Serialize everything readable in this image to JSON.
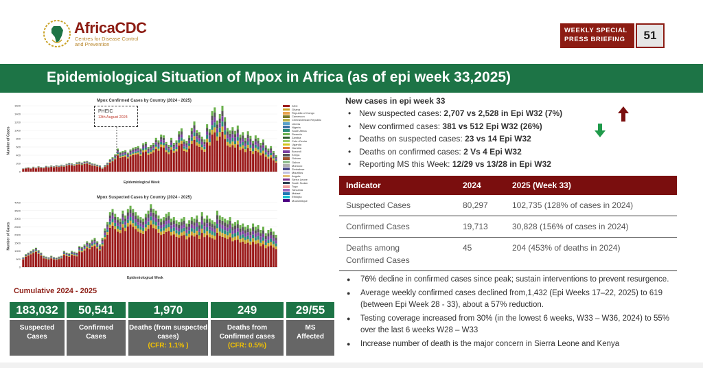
{
  "header": {
    "logo_text": "AfricaCDC",
    "logo_sub_1": "Centres for Disease Control",
    "logo_sub_2": "and Prevention",
    "briefing_line1": "WEEKLY SPECIAL",
    "briefing_line2": "PRESS BRIEFING",
    "briefing_number": "51"
  },
  "title": "Epidemiological Situation of Mpox in Africa (as of epi week 33,2025)",
  "charts": {
    "confirmed": {
      "title": "Mpox Confirmed Cases by Country (2024 - 2025)",
      "xlabel": "Epidemiological Week",
      "ylabel": "Number of Cases",
      "y_ticks": [
        "1600",
        "1400",
        "1200",
        "1000",
        "800",
        "600",
        "400",
        "200",
        "0"
      ],
      "annotation_title": "PHEIC",
      "annotation_date": "13th August 2024"
    },
    "suspected": {
      "title": "Mpox Suspected Cases by Country (2024 - 2025)",
      "xlabel": "Epidemiological Week",
      "ylabel": "Number of Cases",
      "y_ticks": [
        "4000",
        "3500",
        "3000",
        "2500",
        "2000",
        "1500",
        "1000",
        "500",
        "0"
      ]
    },
    "legend": [
      {
        "name": "DRC",
        "color": "#9b1b1b"
      },
      {
        "name": "Ghana",
        "color": "#c9a227"
      },
      {
        "name": "Republic of Congo",
        "color": "#e8a34d"
      },
      {
        "name": "Cameroon",
        "color": "#7a7a2a"
      },
      {
        "name": "Central African Republic",
        "color": "#b8b04a"
      },
      {
        "name": "Liberia",
        "color": "#5aa1c9"
      },
      {
        "name": "Nigeria",
        "color": "#3a6ea5"
      },
      {
        "name": "South Africa",
        "color": "#2a8a7a"
      },
      {
        "name": "Rwanda",
        "color": "#6ab04c"
      },
      {
        "name": "Zambia",
        "color": "#2e5e2e"
      },
      {
        "name": "Cote d'Ivoire",
        "color": "#9ccc65"
      },
      {
        "name": "Uganda",
        "color": "#d4c41a"
      },
      {
        "name": "Gambia",
        "color": "#e07b39"
      },
      {
        "name": "Burundi",
        "color": "#7b3fa0"
      },
      {
        "name": "Kenya",
        "color": "#555555"
      },
      {
        "name": "Guinea",
        "color": "#a0522d"
      },
      {
        "name": "Gabon",
        "color": "#8fbc8f"
      },
      {
        "name": "Morocco",
        "color": "#b0b0b0"
      },
      {
        "name": "Zimbabwe",
        "color": "#4a4a8a"
      },
      {
        "name": "Mauritius",
        "color": "#c0c0e0"
      },
      {
        "name": "Angola",
        "color": "#e5c07b"
      },
      {
        "name": "Sierra Leone",
        "color": "#7e2f8e"
      },
      {
        "name": "South Sudan",
        "color": "#2c3e50"
      },
      {
        "name": "Togo",
        "color": "#f0a0a0"
      },
      {
        "name": "Tanzania",
        "color": "#9467bd"
      },
      {
        "name": "Malawi",
        "color": "#1f77b4"
      },
      {
        "name": "Ethiopia",
        "color": "#17becf"
      },
      {
        "name": "Mozambique",
        "color": "#4b0082"
      }
    ]
  },
  "chart_data": [
    {
      "type": "bar",
      "title": "Mpox Confirmed Cases by Country (2024 - 2025)",
      "xlabel": "Epidemiological Week",
      "ylabel": "Number of Cases",
      "ylim": [
        0,
        1600
      ],
      "values": [
        80,
        95,
        110,
        90,
        120,
        100,
        130,
        115,
        105,
        140,
        125,
        150,
        135,
        160,
        145,
        170,
        155,
        190,
        210,
        200,
        180,
        230,
        240,
        220,
        250,
        260,
        230,
        200,
        190,
        170,
        150,
        100,
        160,
        220,
        300,
        350,
        420,
        560,
        480,
        500,
        520,
        460,
        540,
        580,
        600,
        620,
        560,
        690,
        720,
        600,
        650,
        700,
        820,
        760,
        900,
        880,
        720,
        650,
        820,
        700,
        760,
        980,
        1050,
        780,
        750,
        880,
        1060,
        1220,
        1010,
        960,
        850,
        780,
        1150,
        1030,
        1470,
        1560,
        1240,
        1400,
        1600,
        1320,
        1060,
        1000,
        1080,
        990,
        1120,
        900,
        960,
        820,
        980,
        870,
        750,
        880,
        820,
        700,
        780,
        640,
        560,
        620,
        500,
        400
      ]
    },
    {
      "type": "bar",
      "title": "Mpox Suspected Cases by Country (2024 - 2025)",
      "xlabel": "Epidemiological Week",
      "ylabel": "Number of Cases",
      "ylim": [
        0,
        4000
      ],
      "values": [
        600,
        800,
        900,
        1000,
        1100,
        1200,
        1050,
        900,
        700,
        650,
        600,
        700,
        620,
        580,
        650,
        700,
        1000,
        900,
        850,
        1000,
        950,
        900,
        1300,
        1250,
        1400,
        1600,
        1500,
        1700,
        1800,
        1600,
        1400,
        1800,
        2400,
        2800,
        3400,
        3600,
        3300,
        3100,
        3000,
        3500,
        3200,
        3600,
        3800,
        3600,
        3400,
        3200,
        3100,
        3000,
        3300,
        3500,
        3900,
        3600,
        3500,
        3200,
        3000,
        3100,
        3300,
        3400,
        3000,
        3100,
        2900,
        2800,
        3000,
        3100,
        2700,
        2900,
        3100,
        3000,
        3200,
        2800,
        3400,
        3000,
        3200,
        3000,
        2900,
        2800,
        3500,
        3200,
        3100,
        3000,
        2900,
        3100,
        2700,
        2800,
        2900,
        2600,
        2700,
        2500,
        2600,
        2400,
        2700,
        2500,
        2600,
        2300,
        2500,
        2100,
        2300,
        2400,
        2200,
        2000
      ]
    }
  ],
  "cumulative": {
    "title": "Cumulative 2024 - 2025",
    "stats": [
      {
        "value": "183,032",
        "label": "Suspected Cases",
        "cfr": ""
      },
      {
        "value": "50,541",
        "label": "Confirmed Cases",
        "cfr": ""
      },
      {
        "value": "1,970",
        "label": "Deaths (from suspected cases)",
        "cfr": "(CFR: 1.1% )"
      },
      {
        "value": "249",
        "label": "Deaths from Confirmed cases",
        "cfr": "(CFR: 0.5%)"
      },
      {
        "value": "29/55",
        "label": "MS Affected",
        "cfr": ""
      }
    ]
  },
  "new_cases": {
    "title": "New cases in epi week 33",
    "bullets": [
      {
        "prefix": "New suspected cases: ",
        "bold": "2,707 vs 2,528 in Epi W32 (7%)"
      },
      {
        "prefix": "New confirmed cases: ",
        "bold": "381 vs 512 Epi W32 (26%)"
      },
      {
        "prefix": "Deaths on suspected cases: ",
        "bold": "23 vs 14 Epi W32"
      },
      {
        "prefix": "Deaths on confirmed cases: ",
        "bold": "2 Vs 4 Epi W32"
      },
      {
        "prefix": "Reporting MS this Week: ",
        "bold": "12/29 vs 13/28 in Epi W32"
      }
    ],
    "arrow_up_color": "#7a0e0e",
    "arrow_down_color": "#1f9a4a"
  },
  "indicator_table": {
    "headers": [
      "Indicator",
      "2024",
      "2025 (Week 33)"
    ],
    "rows": [
      [
        "Suspected Cases",
        "80,297",
        "102,735 (128% of cases in 2024)"
      ],
      [
        "Confirmed Cases",
        "19,713",
        "30,828 (156% of cases in 2024)"
      ],
      [
        "Deaths among Confirmed Cases",
        "45",
        "204 (453% of deaths in 2024)"
      ]
    ]
  },
  "notes": [
    "76% decline in confirmed cases since peak; sustain interventions to prevent resurgence.",
    "Average weekly confirmed cases declined from,1,432 (Epi Weeks 17–22, 2025) to 619 (between Epi Week 28 - 33), about a 57% reduction.",
    "Testing coverage increased from 30% (in the lowest 6 weeks, W33 – W36, 2024) to 55% over the last 6  weeks W28 – W33",
    "Increase number of death is the major concern in Sierra Leone and Kenya"
  ],
  "colors": {
    "brand_red": "#8c1c13",
    "brand_green": "#1d7446",
    "label_grey": "#666666",
    "cfr_yellow": "#f5c400"
  }
}
